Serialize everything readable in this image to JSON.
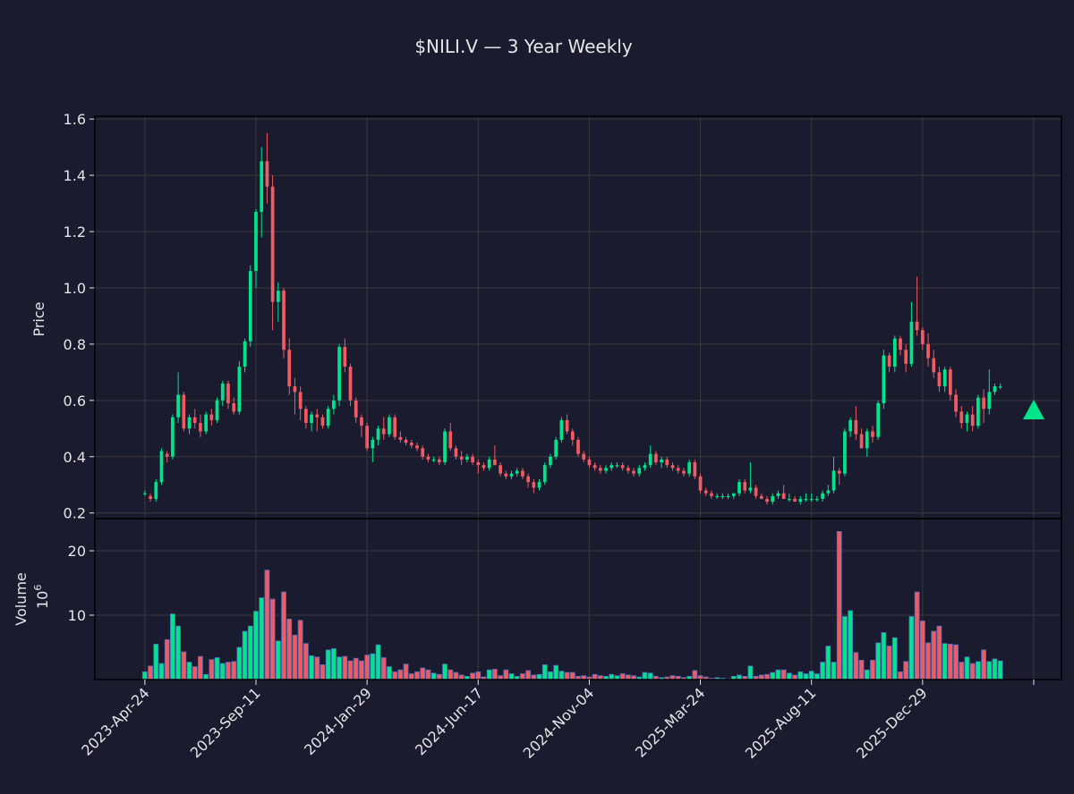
{
  "chart_data": {
    "type": "candlestick",
    "title": "$NILI.V — 3 Year Weekly",
    "interval": "weekly",
    "price_panel": {
      "ylabel": "Price",
      "ylim": [
        0.18,
        1.61
      ],
      "yticks": [
        0.2,
        0.4,
        0.6,
        0.8,
        1.0,
        1.2,
        1.4,
        1.6
      ],
      "ytick_labels": [
        "0.2",
        "0.4",
        "0.6",
        "0.8",
        "1.0",
        "1.2",
        "1.4",
        "1.6"
      ],
      "grid": true
    },
    "volume_panel": {
      "ylabel": "Volume",
      "scale_label": "10",
      "scale_exponent": "6",
      "ylim": [
        0,
        25
      ],
      "yticks": [
        10,
        20
      ],
      "ytick_labels": [
        "10",
        "20"
      ],
      "grid": true
    },
    "x_ticks": [
      {
        "week": 0,
        "label": "2023-Apr-24"
      },
      {
        "week": 20,
        "label": "2023-Sep-11"
      },
      {
        "week": 40,
        "label": "2024-Jan-29"
      },
      {
        "week": 60,
        "label": "2024-Jun-17"
      },
      {
        "week": 80,
        "label": "2024-Nov-04"
      },
      {
        "week": 100,
        "label": "2025-Mar-24"
      },
      {
        "week": 120,
        "label": "2025-Aug-11"
      },
      {
        "week": 140,
        "label": "2025-Dec-29"
      },
      {
        "week": 160,
        "label": ""
      }
    ],
    "x_range": [
      -9,
      165
    ],
    "candles": [
      [
        0.27,
        0.28,
        0.26,
        0.27,
        1.2
      ],
      [
        0.26,
        0.27,
        0.24,
        0.25,
        2.1
      ],
      [
        0.25,
        0.32,
        0.24,
        0.31,
        5.5
      ],
      [
        0.31,
        0.43,
        0.3,
        0.42,
        2.5
      ],
      [
        0.41,
        0.42,
        0.38,
        0.4,
        6.2
      ],
      [
        0.4,
        0.55,
        0.39,
        0.54,
        10.2
      ],
      [
        0.54,
        0.7,
        0.52,
        0.62,
        8.3
      ],
      [
        0.62,
        0.63,
        0.49,
        0.5,
        4.3
      ],
      [
        0.5,
        0.55,
        0.48,
        0.54,
        2.7
      ],
      [
        0.54,
        0.57,
        0.5,
        0.52,
        2.0
      ],
      [
        0.52,
        0.55,
        0.47,
        0.49,
        3.6
      ],
      [
        0.49,
        0.56,
        0.48,
        0.55,
        0.8
      ],
      [
        0.55,
        0.57,
        0.51,
        0.53,
        3.1
      ],
      [
        0.53,
        0.61,
        0.52,
        0.6,
        3.4
      ],
      [
        0.6,
        0.67,
        0.58,
        0.66,
        2.5
      ],
      [
        0.66,
        0.67,
        0.57,
        0.59,
        2.7
      ],
      [
        0.59,
        0.61,
        0.55,
        0.56,
        2.8
      ],
      [
        0.56,
        0.74,
        0.55,
        0.72,
        5.0
      ],
      [
        0.72,
        0.82,
        0.7,
        0.81,
        7.5
      ],
      [
        0.81,
        1.08,
        0.79,
        1.06,
        8.3
      ],
      [
        1.06,
        1.28,
        1.0,
        1.27,
        10.6
      ],
      [
        1.27,
        1.5,
        1.18,
        1.45,
        12.7
      ],
      [
        1.45,
        1.55,
        1.3,
        1.36,
        17.0
      ],
      [
        1.36,
        1.4,
        0.85,
        0.95,
        12.5
      ],
      [
        0.95,
        1.02,
        0.88,
        0.99,
        6.0
      ],
      [
        0.99,
        1.0,
        0.75,
        0.78,
        13.6
      ],
      [
        0.78,
        0.82,
        0.62,
        0.65,
        9.4
      ],
      [
        0.65,
        0.68,
        0.55,
        0.63,
        6.9
      ],
      [
        0.63,
        0.65,
        0.53,
        0.57,
        9.2
      ],
      [
        0.57,
        0.58,
        0.5,
        0.52,
        5.6
      ],
      [
        0.52,
        0.56,
        0.49,
        0.55,
        3.7
      ],
      [
        0.55,
        0.57,
        0.49,
        0.54,
        3.5
      ],
      [
        0.54,
        0.55,
        0.5,
        0.51,
        2.3
      ],
      [
        0.51,
        0.58,
        0.5,
        0.57,
        4.6
      ],
      [
        0.57,
        0.62,
        0.55,
        0.6,
        4.8
      ],
      [
        0.6,
        0.8,
        0.58,
        0.79,
        3.5
      ],
      [
        0.79,
        0.82,
        0.7,
        0.72,
        3.6
      ],
      [
        0.72,
        0.73,
        0.58,
        0.6,
        2.9
      ],
      [
        0.6,
        0.61,
        0.52,
        0.54,
        3.3
      ],
      [
        0.54,
        0.55,
        0.47,
        0.51,
        2.9
      ],
      [
        0.51,
        0.52,
        0.42,
        0.43,
        3.8
      ],
      [
        0.43,
        0.47,
        0.38,
        0.46,
        4.0
      ],
      [
        0.46,
        0.51,
        0.44,
        0.5,
        5.4
      ],
      [
        0.5,
        0.54,
        0.46,
        0.48,
        3.4
      ],
      [
        0.48,
        0.55,
        0.47,
        0.54,
        2.0
      ],
      [
        0.54,
        0.55,
        0.46,
        0.47,
        1.2
      ],
      [
        0.47,
        0.49,
        0.45,
        0.46,
        1.5
      ],
      [
        0.46,
        0.47,
        0.44,
        0.45,
        2.4
      ],
      [
        0.45,
        0.46,
        0.43,
        0.44,
        0.9
      ],
      [
        0.44,
        0.45,
        0.42,
        0.43,
        1.2
      ],
      [
        0.43,
        0.44,
        0.39,
        0.4,
        1.8
      ],
      [
        0.4,
        0.41,
        0.38,
        0.39,
        1.5
      ],
      [
        0.39,
        0.4,
        0.38,
        0.39,
        1.0
      ],
      [
        0.39,
        0.4,
        0.37,
        0.38,
        0.8
      ],
      [
        0.38,
        0.5,
        0.37,
        0.49,
        2.4
      ],
      [
        0.49,
        0.52,
        0.42,
        0.43,
        1.5
      ],
      [
        0.43,
        0.44,
        0.39,
        0.4,
        1.1
      ],
      [
        0.4,
        0.42,
        0.37,
        0.39,
        0.7
      ],
      [
        0.39,
        0.41,
        0.38,
        0.4,
        0.5
      ],
      [
        0.4,
        0.41,
        0.37,
        0.38,
        1.0
      ],
      [
        0.38,
        0.39,
        0.34,
        0.37,
        1.2
      ],
      [
        0.37,
        0.38,
        0.35,
        0.36,
        0.4
      ],
      [
        0.36,
        0.4,
        0.35,
        0.39,
        1.5
      ],
      [
        0.39,
        0.44,
        0.38,
        0.37,
        1.6
      ],
      [
        0.37,
        0.38,
        0.33,
        0.34,
        0.6
      ],
      [
        0.34,
        0.35,
        0.32,
        0.33,
        1.5
      ],
      [
        0.33,
        0.35,
        0.32,
        0.34,
        0.9
      ],
      [
        0.34,
        0.36,
        0.33,
        0.35,
        0.5
      ],
      [
        0.35,
        0.36,
        0.32,
        0.33,
        0.9
      ],
      [
        0.33,
        0.34,
        0.29,
        0.31,
        1.4
      ],
      [
        0.31,
        0.32,
        0.27,
        0.29,
        0.7
      ],
      [
        0.29,
        0.32,
        0.28,
        0.31,
        0.8
      ],
      [
        0.31,
        0.38,
        0.3,
        0.37,
        2.3
      ],
      [
        0.37,
        0.41,
        0.36,
        0.4,
        1.2
      ],
      [
        0.4,
        0.47,
        0.39,
        0.46,
        2.2
      ],
      [
        0.46,
        0.54,
        0.45,
        0.53,
        1.3
      ],
      [
        0.53,
        0.55,
        0.48,
        0.49,
        1.1
      ],
      [
        0.49,
        0.5,
        0.44,
        0.46,
        1.1
      ],
      [
        0.46,
        0.47,
        0.4,
        0.41,
        0.5
      ],
      [
        0.41,
        0.42,
        0.38,
        0.39,
        0.6
      ],
      [
        0.39,
        0.4,
        0.36,
        0.37,
        0.4
      ],
      [
        0.37,
        0.38,
        0.35,
        0.36,
        0.8
      ],
      [
        0.36,
        0.37,
        0.34,
        0.35,
        0.6
      ],
      [
        0.35,
        0.37,
        0.34,
        0.36,
        0.5
      ],
      [
        0.36,
        0.38,
        0.35,
        0.37,
        0.8
      ],
      [
        0.37,
        0.38,
        0.36,
        0.37,
        0.6
      ],
      [
        0.37,
        0.38,
        0.35,
        0.36,
        0.9
      ],
      [
        0.36,
        0.37,
        0.34,
        0.35,
        0.7
      ],
      [
        0.35,
        0.36,
        0.33,
        0.34,
        0.6
      ],
      [
        0.34,
        0.37,
        0.33,
        0.36,
        0.4
      ],
      [
        0.36,
        0.38,
        0.35,
        0.37,
        1.1
      ],
      [
        0.37,
        0.44,
        0.36,
        0.41,
        1.0
      ],
      [
        0.41,
        0.42,
        0.37,
        0.38,
        0.5
      ],
      [
        0.38,
        0.4,
        0.36,
        0.39,
        0.3
      ],
      [
        0.39,
        0.4,
        0.36,
        0.37,
        0.4
      ],
      [
        0.37,
        0.38,
        0.35,
        0.36,
        0.6
      ],
      [
        0.36,
        0.37,
        0.34,
        0.35,
        0.5
      ],
      [
        0.35,
        0.36,
        0.33,
        0.34,
        0.3
      ],
      [
        0.34,
        0.39,
        0.33,
        0.38,
        0.5
      ],
      [
        0.38,
        0.39,
        0.32,
        0.33,
        1.4
      ],
      [
        0.33,
        0.34,
        0.27,
        0.28,
        0.6
      ],
      [
        0.28,
        0.29,
        0.26,
        0.27,
        0.4
      ],
      [
        0.27,
        0.28,
        0.25,
        0.26,
        0.2
      ],
      [
        0.26,
        0.27,
        0.25,
        0.26,
        0.3
      ],
      [
        0.26,
        0.27,
        0.25,
        0.26,
        0.2
      ],
      [
        0.26,
        0.27,
        0.25,
        0.26,
        0.1
      ],
      [
        0.26,
        0.27,
        0.25,
        0.27,
        0.5
      ],
      [
        0.27,
        0.32,
        0.26,
        0.31,
        0.7
      ],
      [
        0.31,
        0.32,
        0.27,
        0.28,
        0.5
      ],
      [
        0.28,
        0.38,
        0.27,
        0.29,
        2.1
      ],
      [
        0.29,
        0.3,
        0.25,
        0.26,
        0.5
      ],
      [
        0.26,
        0.27,
        0.25,
        0.25,
        0.7
      ],
      [
        0.25,
        0.26,
        0.23,
        0.24,
        0.8
      ],
      [
        0.24,
        0.27,
        0.23,
        0.26,
        1.1
      ],
      [
        0.26,
        0.28,
        0.25,
        0.27,
        1.5
      ],
      [
        0.27,
        0.3,
        0.25,
        0.25,
        1.5
      ],
      [
        0.25,
        0.27,
        0.24,
        0.25,
        1.0
      ],
      [
        0.25,
        0.26,
        0.24,
        0.24,
        0.7
      ],
      [
        0.24,
        0.26,
        0.23,
        0.25,
        1.2
      ],
      [
        0.25,
        0.27,
        0.24,
        0.25,
        0.9
      ],
      [
        0.25,
        0.27,
        0.24,
        0.25,
        1.3
      ],
      [
        0.25,
        0.26,
        0.24,
        0.25,
        0.9
      ],
      [
        0.25,
        0.28,
        0.24,
        0.27,
        2.7
      ],
      [
        0.27,
        0.3,
        0.26,
        0.28,
        5.2
      ],
      [
        0.28,
        0.4,
        0.27,
        0.35,
        2.7
      ],
      [
        0.35,
        0.36,
        0.3,
        0.34,
        23.0
      ],
      [
        0.34,
        0.5,
        0.33,
        0.49,
        9.8
      ],
      [
        0.49,
        0.54,
        0.47,
        0.53,
        10.7
      ],
      [
        0.53,
        0.58,
        0.46,
        0.48,
        4.2
      ],
      [
        0.48,
        0.5,
        0.43,
        0.43,
        3.0
      ],
      [
        0.43,
        0.5,
        0.4,
        0.49,
        1.5
      ],
      [
        0.49,
        0.51,
        0.45,
        0.47,
        3.0
      ],
      [
        0.47,
        0.6,
        0.46,
        0.59,
        5.7
      ],
      [
        0.59,
        0.78,
        0.57,
        0.76,
        7.3
      ],
      [
        0.76,
        0.77,
        0.7,
        0.72,
        5.2
      ],
      [
        0.72,
        0.83,
        0.7,
        0.82,
        6.5
      ],
      [
        0.82,
        0.83,
        0.76,
        0.78,
        1.2
      ],
      [
        0.78,
        0.8,
        0.7,
        0.73,
        2.8
      ],
      [
        0.73,
        0.95,
        0.72,
        0.88,
        9.8
      ],
      [
        0.88,
        1.04,
        0.83,
        0.85,
        13.6
      ],
      [
        0.85,
        0.86,
        0.78,
        0.8,
        9.1
      ],
      [
        0.8,
        0.84,
        0.72,
        0.75,
        5.7
      ],
      [
        0.75,
        0.78,
        0.68,
        0.7,
        7.5
      ],
      [
        0.7,
        0.72,
        0.63,
        0.65,
        8.3
      ],
      [
        0.65,
        0.72,
        0.63,
        0.71,
        5.6
      ],
      [
        0.71,
        0.72,
        0.6,
        0.62,
        5.5
      ],
      [
        0.62,
        0.64,
        0.54,
        0.56,
        5.4
      ],
      [
        0.56,
        0.58,
        0.5,
        0.52,
        2.7
      ],
      [
        0.52,
        0.56,
        0.49,
        0.55,
        3.5
      ],
      [
        0.55,
        0.58,
        0.49,
        0.51,
        2.5
      ],
      [
        0.51,
        0.62,
        0.5,
        0.61,
        2.8
      ],
      [
        0.61,
        0.64,
        0.52,
        0.57,
        4.6
      ],
      [
        0.57,
        0.71,
        0.55,
        0.63,
        2.8
      ],
      [
        0.63,
        0.66,
        0.62,
        0.65,
        3.2
      ],
      [
        0.65,
        0.66,
        0.64,
        0.65,
        2.9
      ]
    ],
    "candle_fields": [
      "open",
      "high",
      "low",
      "close",
      "volume_millions"
    ],
    "colors": {
      "up": "#00e58c",
      "down": "#f05a63",
      "background": "#1a1b2e",
      "text": "#e6e6e6",
      "grid": "#3a3a3a",
      "axes": "#000000",
      "volume_edge": "#4c6fbf"
    },
    "last_price_marker": {
      "shape": "triangle-up",
      "week": 160,
      "value": 0.565,
      "color": "#00e58c"
    }
  }
}
